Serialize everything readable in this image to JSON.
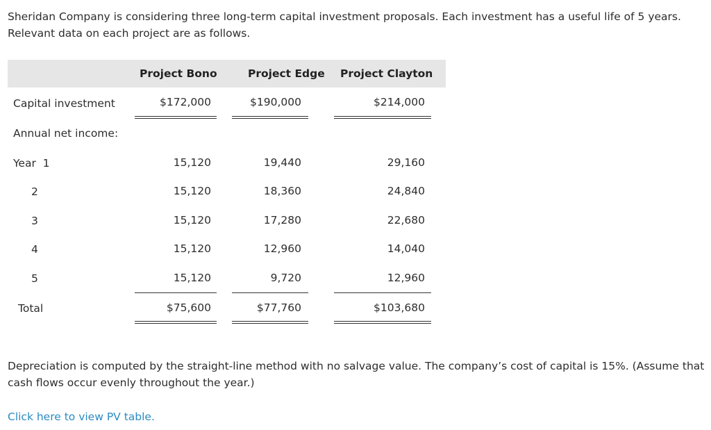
{
  "intro": "Sheridan Company is considering three long-term capital investment proposals. Each investment has a useful life of 5 years. Relevant data on each project are as follows.",
  "table": {
    "headers": [
      "Project Bono",
      "Project Edge",
      "Project Clayton"
    ],
    "capital_label": "Capital investment",
    "capital": [
      "$172,000",
      "$190,000",
      "$214,000"
    ],
    "annual_label": "Annual net income:",
    "years": [
      {
        "label": "Year  1",
        "values": [
          "15,120",
          "19,440",
          "29,160"
        ]
      },
      {
        "label": "2",
        "values": [
          "15,120",
          "18,360",
          "24,840"
        ]
      },
      {
        "label": "3",
        "values": [
          "15,120",
          "17,280",
          "22,680"
        ]
      },
      {
        "label": "4",
        "values": [
          "15,120",
          "12,960",
          "14,040"
        ]
      },
      {
        "label": "5",
        "values": [
          "15,120",
          "9,720",
          "12,960"
        ]
      }
    ],
    "total_label": "Total",
    "totals": [
      "$75,600",
      "$77,760",
      "$103,680"
    ]
  },
  "note": "Depreciation is computed by the straight-line method with no salvage value. The company’s cost of capital is 15%. (Assume that cash flows occur evenly throughout the year.)",
  "link_text": "Click here to view PV table.",
  "colors": {
    "header_band": "#e6e6e6",
    "link": "#2a8bc4"
  }
}
